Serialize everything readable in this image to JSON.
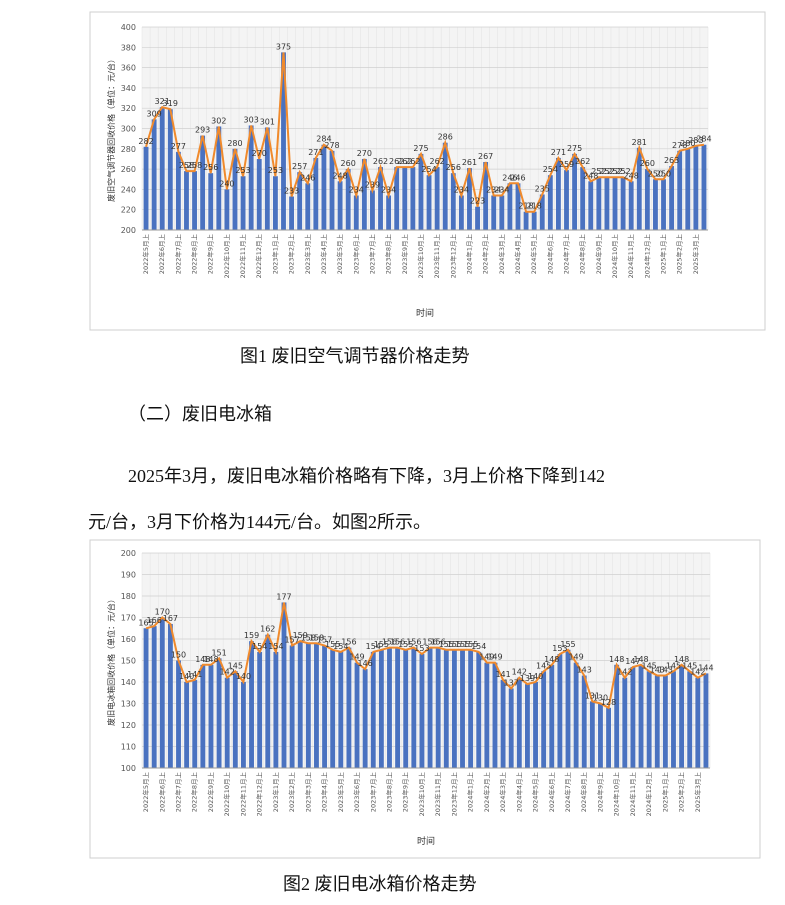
{
  "chart_data": [
    {
      "type": "bar",
      "line_overlay": true,
      "y_label": "废旧空气调节器回收价格（单位：元/台）",
      "x_label": "时间",
      "caption": "图1  废旧空气调节器价格走势",
      "color": "#4a72c0",
      "line_color": "#f08a2c",
      "grid": true,
      "ylim": [
        200,
        400
      ],
      "yticks": [
        200,
        220,
        240,
        260,
        280,
        300,
        320,
        340,
        360,
        380,
        400
      ],
      "categories": [
        "2022年5月上",
        null,
        "2022年6月上",
        null,
        "2022年7月上",
        null,
        "2022年8月上",
        null,
        "2022年9月上",
        null,
        "2022年10月上",
        null,
        "2022年11月上",
        null,
        "2022年12月上",
        null,
        "2023年1月上",
        null,
        "2023年2月上",
        null,
        "2023年3月上",
        null,
        "2023年4月上",
        null,
        "2023年5月上",
        null,
        "2023年6月上",
        null,
        "2023年7月上",
        null,
        "2023年8月上",
        null,
        "2023年9月上",
        null,
        "2023年10月上",
        null,
        "2023年11月上",
        null,
        "2023年12月上",
        null,
        "2024年1月上",
        null,
        "2024年2月上",
        null,
        "2024年3月上",
        null,
        "2024年4月上",
        null,
        "2024年5月上",
        null,
        "2024年6月上",
        null,
        "2024年7月上",
        null,
        "2024年8月上",
        null,
        "2024年9月上",
        null,
        "2024年10月上",
        null,
        "2024年11月上",
        null,
        "2024年12月上",
        null,
        "2025年1月上",
        null,
        "2025年2月上",
        null,
        "2025年3月上",
        null
      ],
      "values": [
        282,
        309,
        321,
        319,
        277,
        258,
        258,
        293,
        256,
        302,
        240,
        280,
        253,
        303,
        270,
        301,
        253,
        375,
        233,
        257,
        246,
        271,
        284,
        278,
        248,
        260,
        234,
        270,
        239,
        262,
        234,
        262,
        262,
        262,
        275,
        254,
        262,
        286,
        256,
        234,
        261,
        223,
        267,
        234,
        234,
        246,
        246,
        218,
        218,
        235,
        254,
        271,
        259,
        275,
        262,
        248,
        252,
        252,
        252,
        252,
        248,
        281,
        260,
        250,
        250,
        263,
        278,
        280,
        283,
        284
      ]
    },
    {
      "type": "bar",
      "line_overlay": true,
      "y_label": "废旧电冰箱回收价格（单位：元/台）",
      "x_label": "时间",
      "caption": "图2  废旧电冰箱价格走势",
      "color": "#4a72c0",
      "line_color": "#f08a2c",
      "grid": true,
      "ylim": [
        100,
        200
      ],
      "yticks": [
        100,
        110,
        120,
        130,
        140,
        150,
        160,
        170,
        180,
        190,
        200
      ],
      "categories": [
        "2022年5月上",
        null,
        "2022年6月上",
        null,
        "2022年7月上",
        null,
        "2022年8月上",
        null,
        "2022年9月上",
        null,
        "2022年10月上",
        null,
        "2022年11月上",
        null,
        "2022年12月上",
        null,
        "2023年1月上",
        null,
        "2023年2月上",
        null,
        "2023年3月上",
        null,
        "2023年4月上",
        null,
        "2023年5月上",
        null,
        "2023年6月上",
        null,
        "2023年7月上",
        null,
        "2023年8月上",
        null,
        "2023年9月上",
        null,
        "2023年10月上",
        null,
        "2023年11月上",
        null,
        "2023年12月上",
        null,
        "2024年1月上",
        null,
        "2024年2月上",
        null,
        "2024年3月上",
        null,
        "2024年4月上",
        null,
        "2024年5月上",
        null,
        "2024年6月上",
        null,
        "2024年7月上",
        null,
        "2024年8月上",
        null,
        "2024年9月上",
        null,
        "2024年10月上",
        null,
        "2024年11月上",
        null,
        "2024年12月上",
        null,
        "2025年1月上",
        null,
        "2025年2月上",
        null,
        "2025年3月上",
        null
      ],
      "values": [
        165,
        166,
        170,
        167,
        150,
        140,
        141,
        148,
        148,
        151,
        142,
        145,
        140,
        159,
        154,
        162,
        154,
        177,
        157,
        159,
        158,
        158,
        157,
        155,
        154,
        156,
        149,
        146,
        154,
        155,
        156,
        156,
        155,
        156,
        153,
        156,
        156,
        155,
        155,
        155,
        155,
        154,
        149,
        149,
        141,
        137,
        142,
        139,
        140,
        145,
        148,
        153,
        155,
        149,
        143,
        131,
        130,
        128,
        148,
        142,
        147,
        148,
        145,
        143,
        143,
        145,
        148,
        145,
        142,
        144
      ]
    }
  ],
  "section": {
    "heading": "（二）废旧电冰箱",
    "paragraph": [
      "2025年3月，废旧电冰箱价格略有下降，3月上价格下降到142",
      "元/台，3月下价格为144元/台。如图2所示。"
    ]
  }
}
